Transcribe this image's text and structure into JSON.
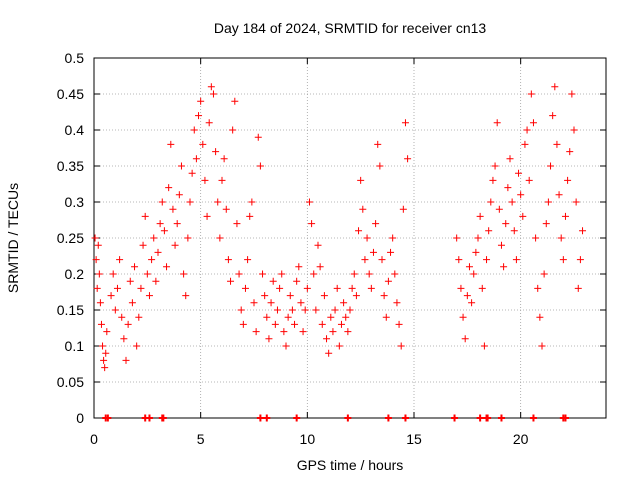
{
  "chart_data": {
    "type": "scatter",
    "title": "Day 184 of 2024, SRMTID for receiver cn13",
    "xlabel": "GPS time / hours",
    "ylabel": "SRMTID / TECUs",
    "xlim": [
      0,
      24
    ],
    "ylim": [
      0,
      0.5
    ],
    "xticks": [
      0,
      5,
      10,
      15,
      20
    ],
    "yticks": [
      0,
      0.05,
      0.1,
      0.15,
      0.2,
      0.25,
      0.3,
      0.35,
      0.4,
      0.45,
      0.5
    ],
    "xtick_labels": [
      "0",
      "5",
      "10",
      "15",
      "20"
    ],
    "ytick_labels": [
      "0",
      "0.05",
      "0.1",
      "0.15",
      "0.2",
      "0.25",
      "0.3",
      "0.35",
      "0.4",
      "0.45",
      "0.5"
    ],
    "grid": true,
    "marker": "+",
    "series_color": "#ff0000",
    "series": [
      {
        "name": "SRMTID",
        "points": [
          [
            0.05,
            0.25
          ],
          [
            0.1,
            0.22
          ],
          [
            0.15,
            0.18
          ],
          [
            0.2,
            0.24
          ],
          [
            0.25,
            0.2
          ],
          [
            0.3,
            0.16
          ],
          [
            0.35,
            0.13
          ],
          [
            0.4,
            0.1
          ],
          [
            0.45,
            0.08
          ],
          [
            0.5,
            0.07
          ],
          [
            0.55,
            0.09
          ],
          [
            0.6,
            0.12
          ],
          [
            0.8,
            0.17
          ],
          [
            0.9,
            0.2
          ],
          [
            1.0,
            0.15
          ],
          [
            1.1,
            0.18
          ],
          [
            1.2,
            0.22
          ],
          [
            1.3,
            0.14
          ],
          [
            1.4,
            0.11
          ],
          [
            1.5,
            0.08
          ],
          [
            1.6,
            0.13
          ],
          [
            1.7,
            0.19
          ],
          [
            1.8,
            0.16
          ],
          [
            1.9,
            0.21
          ],
          [
            2.0,
            0.1
          ],
          [
            2.1,
            0.14
          ],
          [
            2.2,
            0.18
          ],
          [
            2.3,
            0.24
          ],
          [
            2.4,
            0.28
          ],
          [
            2.5,
            0.2
          ],
          [
            2.6,
            0.17
          ],
          [
            2.7,
            0.22
          ],
          [
            2.8,
            0.25
          ],
          [
            2.9,
            0.19
          ],
          [
            3.0,
            0.23
          ],
          [
            3.1,
            0.27
          ],
          [
            3.2,
            0.3
          ],
          [
            3.3,
            0.26
          ],
          [
            3.4,
            0.21
          ],
          [
            3.5,
            0.32
          ],
          [
            3.6,
            0.38
          ],
          [
            3.7,
            0.29
          ],
          [
            3.8,
            0.24
          ],
          [
            3.9,
            0.27
          ],
          [
            4.0,
            0.31
          ],
          [
            4.1,
            0.35
          ],
          [
            4.2,
            0.2
          ],
          [
            4.3,
            0.17
          ],
          [
            4.4,
            0.25
          ],
          [
            4.5,
            0.3
          ],
          [
            4.6,
            0.34
          ],
          [
            4.7,
            0.4
          ],
          [
            4.8,
            0.36
          ],
          [
            4.9,
            0.42
          ],
          [
            5.0,
            0.44
          ],
          [
            5.1,
            0.38
          ],
          [
            5.2,
            0.33
          ],
          [
            5.3,
            0.28
          ],
          [
            5.4,
            0.41
          ],
          [
            5.5,
            0.46
          ],
          [
            5.6,
            0.45
          ],
          [
            5.7,
            0.37
          ],
          [
            5.8,
            0.3
          ],
          [
            5.9,
            0.25
          ],
          [
            6.0,
            0.33
          ],
          [
            6.1,
            0.36
          ],
          [
            6.2,
            0.29
          ],
          [
            6.3,
            0.22
          ],
          [
            6.4,
            0.19
          ],
          [
            6.5,
            0.4
          ],
          [
            6.6,
            0.44
          ],
          [
            6.7,
            0.27
          ],
          [
            6.8,
            0.2
          ],
          [
            6.9,
            0.15
          ],
          [
            7.0,
            0.13
          ],
          [
            7.1,
            0.18
          ],
          [
            7.2,
            0.22
          ],
          [
            7.3,
            0.28
          ],
          [
            7.4,
            0.3
          ],
          [
            7.5,
            0.16
          ],
          [
            7.6,
            0.12
          ],
          [
            7.7,
            0.39
          ],
          [
            7.8,
            0.35
          ],
          [
            7.9,
            0.2
          ],
          [
            8.0,
            0.17
          ],
          [
            8.1,
            0.14
          ],
          [
            8.2,
            0.11
          ],
          [
            8.3,
            0.16
          ],
          [
            8.4,
            0.19
          ],
          [
            8.5,
            0.13
          ],
          [
            8.6,
            0.15
          ],
          [
            8.7,
            0.18
          ],
          [
            8.8,
            0.2
          ],
          [
            8.9,
            0.12
          ],
          [
            9.0,
            0.1
          ],
          [
            9.1,
            0.14
          ],
          [
            9.2,
            0.17
          ],
          [
            9.3,
            0.15
          ],
          [
            9.4,
            0.13
          ],
          [
            9.5,
            0.19
          ],
          [
            9.6,
            0.21
          ],
          [
            9.7,
            0.16
          ],
          [
            9.8,
            0.12
          ],
          [
            9.9,
            0.15
          ],
          [
            10.0,
            0.18
          ],
          [
            10.1,
            0.3
          ],
          [
            10.2,
            0.27
          ],
          [
            10.3,
            0.2
          ],
          [
            10.4,
            0.15
          ],
          [
            10.5,
            0.24
          ],
          [
            10.6,
            0.21
          ],
          [
            10.7,
            0.13
          ],
          [
            10.8,
            0.17
          ],
          [
            10.9,
            0.11
          ],
          [
            11.0,
            0.09
          ],
          [
            11.1,
            0.14
          ],
          [
            11.2,
            0.12
          ],
          [
            11.3,
            0.15
          ],
          [
            11.4,
            0.18
          ],
          [
            11.5,
            0.1
          ],
          [
            11.6,
            0.13
          ],
          [
            11.7,
            0.16
          ],
          [
            11.8,
            0.14
          ],
          [
            11.9,
            0.12
          ],
          [
            12.0,
            0.15
          ],
          [
            12.1,
            0.18
          ],
          [
            12.2,
            0.2
          ],
          [
            12.3,
            0.17
          ],
          [
            12.4,
            0.26
          ],
          [
            12.5,
            0.33
          ],
          [
            12.6,
            0.29
          ],
          [
            12.7,
            0.22
          ],
          [
            12.8,
            0.25
          ],
          [
            12.9,
            0.2
          ],
          [
            13.0,
            0.18
          ],
          [
            13.1,
            0.23
          ],
          [
            13.2,
            0.27
          ],
          [
            13.3,
            0.38
          ],
          [
            13.4,
            0.35
          ],
          [
            13.5,
            0.22
          ],
          [
            13.6,
            0.17
          ],
          [
            13.7,
            0.14
          ],
          [
            13.8,
            0.19
          ],
          [
            13.9,
            0.23
          ],
          [
            14.0,
            0.25
          ],
          [
            14.1,
            0.2
          ],
          [
            14.2,
            0.16
          ],
          [
            14.3,
            0.13
          ],
          [
            14.4,
            0.1
          ],
          [
            14.5,
            0.29
          ],
          [
            14.6,
            0.41
          ],
          [
            14.7,
            0.36
          ],
          [
            17.0,
            0.25
          ],
          [
            17.1,
            0.22
          ],
          [
            17.2,
            0.18
          ],
          [
            17.3,
            0.14
          ],
          [
            17.4,
            0.11
          ],
          [
            17.5,
            0.17
          ],
          [
            17.6,
            0.21
          ],
          [
            17.7,
            0.16
          ],
          [
            17.8,
            0.2
          ],
          [
            17.9,
            0.23
          ],
          [
            18.0,
            0.25
          ],
          [
            18.1,
            0.28
          ],
          [
            18.2,
            0.18
          ],
          [
            18.3,
            0.1
          ],
          [
            18.4,
            0.22
          ],
          [
            18.5,
            0.26
          ],
          [
            18.6,
            0.3
          ],
          [
            18.7,
            0.33
          ],
          [
            18.8,
            0.35
          ],
          [
            18.9,
            0.41
          ],
          [
            19.0,
            0.29
          ],
          [
            19.1,
            0.24
          ],
          [
            19.2,
            0.21
          ],
          [
            19.3,
            0.27
          ],
          [
            19.4,
            0.32
          ],
          [
            19.5,
            0.36
          ],
          [
            19.6,
            0.3
          ],
          [
            19.7,
            0.26
          ],
          [
            19.8,
            0.22
          ],
          [
            19.9,
            0.34
          ],
          [
            20.0,
            0.31
          ],
          [
            20.1,
            0.28
          ],
          [
            20.2,
            0.38
          ],
          [
            20.3,
            0.4
          ],
          [
            20.4,
            0.33
          ],
          [
            20.5,
            0.45
          ],
          [
            20.6,
            0.41
          ],
          [
            20.7,
            0.25
          ],
          [
            20.8,
            0.18
          ],
          [
            20.9,
            0.14
          ],
          [
            21.0,
            0.1
          ],
          [
            21.1,
            0.2
          ],
          [
            21.2,
            0.27
          ],
          [
            21.3,
            0.3
          ],
          [
            21.4,
            0.35
          ],
          [
            21.5,
            0.42
          ],
          [
            21.6,
            0.46
          ],
          [
            21.7,
            0.38
          ],
          [
            21.8,
            0.31
          ],
          [
            21.9,
            0.25
          ],
          [
            22.0,
            0.22
          ],
          [
            22.1,
            0.28
          ],
          [
            22.2,
            0.33
          ],
          [
            22.3,
            0.37
          ],
          [
            22.4,
            0.45
          ],
          [
            22.5,
            0.4
          ],
          [
            22.6,
            0.3
          ],
          [
            22.7,
            0.18
          ],
          [
            22.8,
            0.22
          ],
          [
            22.9,
            0.26
          ]
        ]
      }
    ],
    "baseline_markers_y": 0,
    "baseline_markers_x": [
      0.55,
      0.65,
      2.4,
      2.6,
      3.2,
      3.25,
      7.8,
      8.1,
      9.5,
      11.9,
      13.8,
      14.6,
      16.9,
      18.1,
      18.4,
      18.45,
      19.1,
      20.6,
      22.0,
      22.1
    ]
  }
}
